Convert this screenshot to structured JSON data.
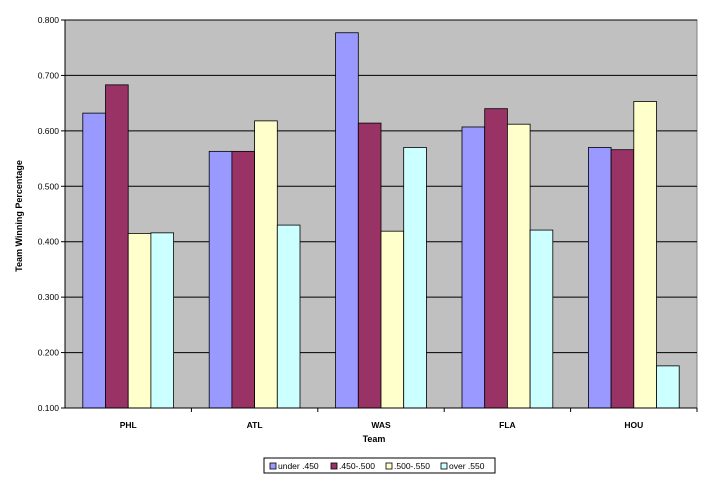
{
  "chart_data": {
    "type": "bar",
    "title": "",
    "xlabel": "Team",
    "ylabel": "Team Winning Percentage",
    "ylim": [
      0.1,
      0.8
    ],
    "yticks": [
      "0.100",
      "0.200",
      "0.300",
      "0.400",
      "0.500",
      "0.600",
      "0.700",
      "0.800"
    ],
    "categories": [
      "PHL",
      "ATL",
      "WAS",
      "FLA",
      "HOU"
    ],
    "grid": true,
    "legend_position": "bottom",
    "series": [
      {
        "name": "under .450",
        "color": "#9999ff",
        "values": [
          0.632,
          0.563,
          0.777,
          0.607,
          0.57
        ]
      },
      {
        "name": ".450-.500",
        "color": "#993366",
        "values": [
          0.683,
          0.563,
          0.614,
          0.64,
          0.566
        ]
      },
      {
        "name": ".500-.550",
        "color": "#ffffcc",
        "values": [
          0.415,
          0.618,
          0.419,
          0.612,
          0.653
        ]
      },
      {
        "name": "over .550",
        "color": "#ccffff",
        "values": [
          0.416,
          0.43,
          0.57,
          0.421,
          0.176
        ]
      }
    ]
  },
  "plot_background": "#c0c0c0"
}
